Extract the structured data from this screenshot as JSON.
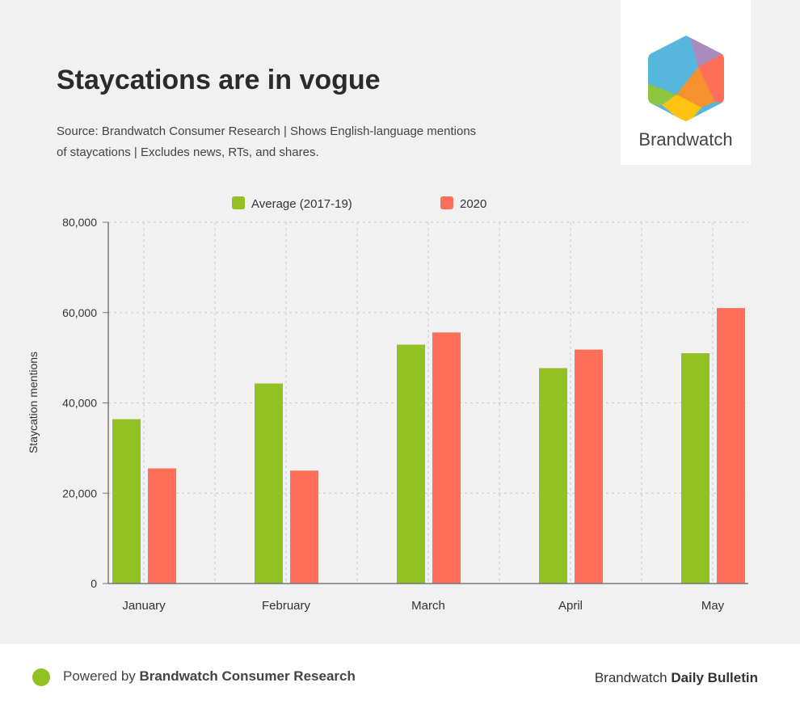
{
  "header": {
    "title": "Staycations are in vogue",
    "subtitle": "Source: Brandwatch Consumer Research | Shows English-language mentions of staycations | Excludes news, RTs, and shares."
  },
  "logo": {
    "text": "Brandwatch",
    "icon": "hexagon-logo-icon"
  },
  "footer": {
    "powered_prefix": "Powered by ",
    "powered_brand": "Brandwatch Consumer Research",
    "right_prefix": "Brandwatch ",
    "right_bold": "Daily Bulletin"
  },
  "colors": {
    "average": "#93c022",
    "y2020": "#ff6e59"
  },
  "chart_data": {
    "type": "bar",
    "title": "Staycations are in vogue",
    "xlabel": "",
    "ylabel": "Staycation mentions",
    "categories": [
      "January",
      "February",
      "March",
      "April",
      "May"
    ],
    "series": [
      {
        "name": "Average (2017-19)",
        "values": [
          36400,
          44300,
          52900,
          47700,
          51000
        ]
      },
      {
        "name": "2020",
        "values": [
          25500,
          25000,
          55600,
          51800,
          61000
        ]
      }
    ],
    "ylim": [
      0,
      80000
    ],
    "yticks": [
      0,
      20000,
      40000,
      60000,
      80000
    ],
    "ytick_labels": [
      "0",
      "20,000",
      "40,000",
      "60,000",
      "80,000"
    ],
    "grid": true,
    "legend": "top-center"
  }
}
